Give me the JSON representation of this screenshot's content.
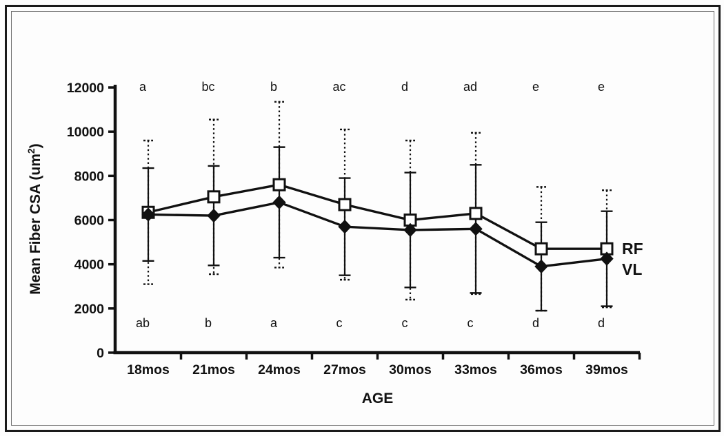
{
  "chart_data": {
    "type": "line",
    "title": "",
    "xlabel": "AGE",
    "ylabel_prefix": "Mean Fiber CSA (um",
    "ylabel_sup": "2",
    "ylabel_suffix": ")",
    "categories": [
      "18mos",
      "21mos",
      "24mos",
      "27mos",
      "30mos",
      "33mos",
      "36mos",
      "39mos"
    ],
    "ylim": [
      0,
      12000
    ],
    "ytick_step": 2000,
    "ytick_labels": [
      "0",
      "2000",
      "4000",
      "6000",
      "8000",
      "10000",
      "12000"
    ],
    "grid": false,
    "legend_position": "right-of-last-point",
    "series": [
      {
        "name": "RF",
        "marker": "open-square",
        "error_style": "dotted",
        "values": [
          6350,
          7050,
          7600,
          6700,
          6000,
          6300,
          4700,
          4700
        ],
        "err_upper": [
          9600,
          10550,
          11350,
          10100,
          9600,
          9950,
          7500,
          7350
        ],
        "err_lower": [
          3100,
          3550,
          3850,
          3300,
          2400,
          2650,
          1900,
          2050
        ]
      },
      {
        "name": "VL",
        "marker": "filled-diamond",
        "error_style": "solid",
        "values": [
          6250,
          6200,
          6800,
          5700,
          5550,
          5600,
          3900,
          4250
        ],
        "err_upper": [
          8350,
          8450,
          9300,
          7900,
          8150,
          8500,
          5900,
          6400
        ],
        "err_lower": [
          4150,
          3950,
          4300,
          3500,
          2950,
          2700,
          1900,
          2100
        ]
      }
    ],
    "significance_letters_top": [
      "a",
      "bc",
      "b",
      "ac",
      "d",
      "ad",
      "e",
      "e"
    ],
    "significance_letters_bottom": [
      "ab",
      "b",
      "a",
      "c",
      "c",
      "c",
      "d",
      "d"
    ],
    "colors": {
      "ink": "#111111",
      "marker_fill_open": "#ffffff"
    }
  }
}
